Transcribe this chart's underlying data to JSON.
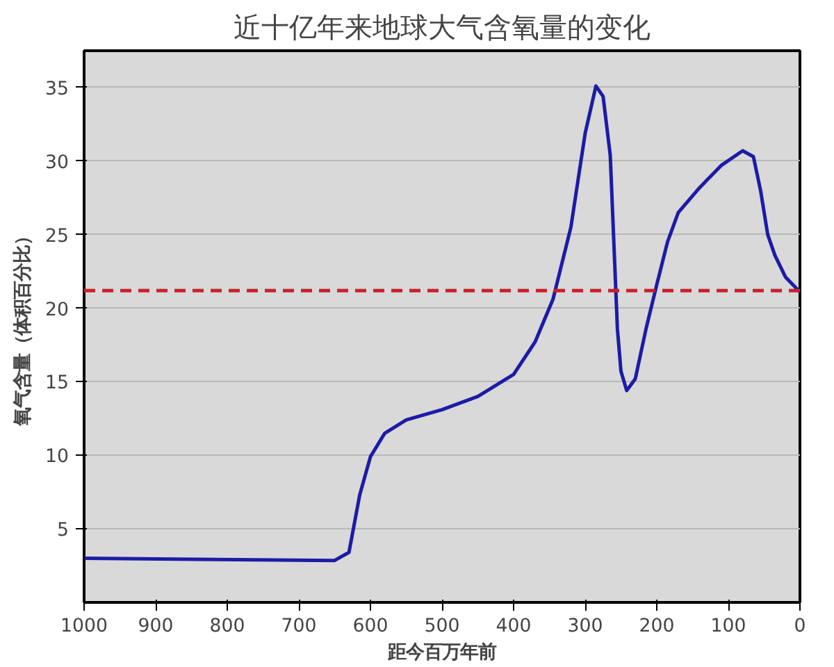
{
  "chart_data": {
    "type": "line",
    "title": "近十亿年来地球大气含氧量的变化",
    "xlabel": "距今百万年前",
    "ylabel": "氧气含量（体积百分比）",
    "xlim": [
      1000,
      0
    ],
    "xticks": [
      1000,
      900,
      800,
      700,
      600,
      500,
      400,
      300,
      200,
      100,
      0
    ],
    "ylim": [
      0,
      37.5
    ],
    "yticks": [
      5,
      10,
      15,
      20,
      25,
      30,
      35
    ],
    "grid": "y",
    "marker": "none",
    "line_style": "solid",
    "series": [
      {
        "color": "#1c1ca6",
        "x": [
          1000,
          650,
          630,
          615,
          600,
          580,
          550,
          500,
          450,
          400,
          370,
          345,
          320,
          300,
          285,
          275,
          265,
          260,
          255,
          250,
          242,
          230,
          215,
          200,
          185,
          170,
          140,
          110,
          80,
          65,
          55,
          45,
          35,
          20,
          0
        ],
        "values": [
          3.0,
          2.85,
          3.4,
          7.3,
          9.9,
          11.5,
          12.4,
          13.1,
          14.0,
          15.5,
          17.7,
          20.6,
          25.5,
          31.9,
          35.1,
          34.4,
          30.4,
          24.5,
          18.6,
          15.7,
          14.4,
          15.2,
          18.6,
          21.6,
          24.5,
          26.5,
          28.2,
          29.7,
          30.7,
          30.3,
          28.0,
          25.0,
          23.6,
          22.1,
          21.1
        ]
      }
    ],
    "ref_lines": [
      {
        "axis": "y",
        "value": 21.2,
        "color": "#c8222a",
        "line_style": "dashed"
      }
    ]
  }
}
